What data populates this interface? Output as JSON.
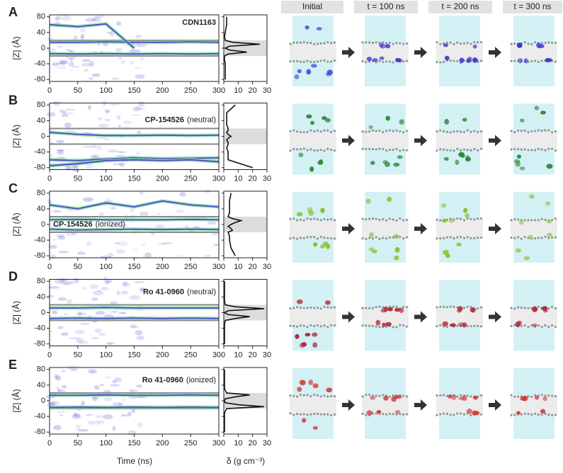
{
  "column_headers": [
    "Initial",
    "t = 100 ns",
    "t = 200 ns",
    "t = 300 ns"
  ],
  "y_axis_label": "[Z] (Å)",
  "x_axis_label": "Time (ns)",
  "density_axis_label": "δ (g cm⁻³)",
  "time_axis": {
    "xlim": [
      0,
      300
    ],
    "xticks": [
      0,
      50,
      100,
      150,
      200,
      250,
      300
    ]
  },
  "density_axis": {
    "xlim": [
      0,
      30
    ],
    "xticks": [
      0,
      10,
      20,
      30
    ]
  },
  "z_axis": {
    "ylim": [
      -85,
      85
    ],
    "yticks": [
      -80,
      -40,
      0,
      40,
      80
    ]
  },
  "membrane_band": [
    -20,
    20
  ],
  "time_points": [
    0,
    50,
    100,
    150,
    200,
    250,
    300
  ],
  "density_z": [
    -80,
    -60,
    -40,
    -30,
    -20,
    -15,
    -10,
    -5,
    0,
    5,
    10,
    15,
    20,
    30,
    40,
    60,
    80
  ],
  "panels": [
    {
      "label": "A",
      "compound": "CDN1163",
      "color": "#3a3ad0",
      "density": [
        1,
        1,
        1,
        0.5,
        0.5,
        3,
        16,
        4,
        1,
        4,
        25,
        6,
        1,
        0.5,
        1,
        2,
        2
      ],
      "traces": [
        [
          15,
          15,
          16,
          15,
          15,
          16,
          15
        ],
        [
          -14,
          -15,
          -14,
          -15,
          -14,
          -15,
          -14
        ],
        [
          60,
          55,
          62,
          0,
          null,
          null,
          null
        ]
      ]
    },
    {
      "label": "B",
      "compound": "CP-154526",
      "form": "(neutral)",
      "color": "#2e8b3a",
      "density": [
        20,
        3,
        3,
        2,
        3,
        3,
        2,
        3,
        5,
        3,
        2,
        3,
        3,
        2,
        2,
        2,
        8
      ],
      "traces": [
        [
          10,
          5,
          2,
          2,
          3,
          2,
          3
        ],
        [
          -60,
          -62,
          -58,
          -55,
          -57,
          -56,
          -55
        ],
        [
          -75,
          -70,
          -62,
          -60,
          -62,
          -60,
          -65
        ]
      ]
    },
    {
      "label": "C",
      "compound": "CP-154526",
      "form": "(ionized)",
      "color": "#8dbf2a",
      "density": [
        8,
        5,
        4,
        4,
        3,
        6,
        5,
        3,
        5,
        8,
        12,
        6,
        3,
        4,
        4,
        4,
        5
      ],
      "traces": [
        [
          12,
          13,
          12,
          12,
          12,
          13,
          12
        ],
        [
          -12,
          -14,
          -13,
          -12,
          -13,
          -12,
          -13
        ],
        [
          50,
          40,
          55,
          45,
          60,
          50,
          45
        ]
      ]
    },
    {
      "label": "D",
      "compound": "Ro 41-0960",
      "form": "(neutral)",
      "color": "#b2283a",
      "density": [
        0.5,
        0.5,
        0.5,
        0.5,
        1,
        8,
        18,
        3,
        0.5,
        3,
        28,
        8,
        1,
        0.5,
        0.5,
        0.5,
        0.5
      ],
      "traces": [
        [
          12,
          12,
          13,
          12,
          12,
          12,
          12
        ],
        [
          -15,
          -14,
          -15,
          -14,
          -15,
          -14,
          -15
        ]
      ]
    },
    {
      "label": "E",
      "compound": "Ro 41-0960",
      "form": "(ionized)",
      "color": "#d43a3a",
      "density": [
        0.5,
        0.5,
        0.5,
        0.5,
        2,
        28,
        10,
        1,
        0.5,
        1,
        8,
        18,
        2,
        0.5,
        0.5,
        0.5,
        0.5
      ],
      "traces": [
        [
          14,
          14,
          15,
          14,
          14,
          15,
          14
        ],
        [
          -17,
          -16,
          -17,
          -16,
          -17,
          -16,
          -17
        ]
      ]
    }
  ]
}
